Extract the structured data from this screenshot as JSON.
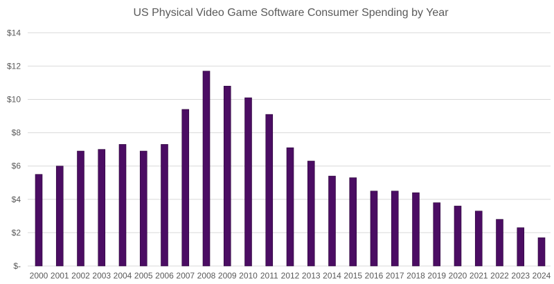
{
  "chart_data": {
    "type": "bar",
    "title": "US Physical Video Game Software Consumer Spending by Year",
    "xlabel": "",
    "ylabel": "",
    "categories": [
      "2000",
      "2001",
      "2002",
      "2003",
      "2004",
      "2005",
      "2006",
      "2007",
      "2008",
      "2009",
      "2010",
      "2011",
      "2012",
      "2013",
      "2014",
      "2015",
      "2016",
      "2017",
      "2018",
      "2019",
      "2020",
      "2021",
      "2022",
      "2023",
      "2024"
    ],
    "values": [
      5.5,
      6.0,
      6.9,
      7.0,
      7.3,
      6.9,
      7.3,
      9.4,
      11.7,
      10.8,
      10.1,
      9.1,
      7.1,
      6.3,
      5.4,
      5.3,
      4.5,
      4.5,
      4.4,
      3.8,
      3.6,
      3.3,
      2.8,
      2.3,
      1.7
    ],
    "ylim": [
      0,
      14
    ],
    "yticks": [
      0,
      2,
      4,
      6,
      8,
      10,
      12,
      14
    ],
    "ytick_labels": [
      "$-",
      "$2",
      "$4",
      "$6",
      "$8",
      "$10",
      "$12",
      "$14"
    ],
    "grid": true,
    "legend": "none",
    "bar_color": "#4b0d63"
  }
}
